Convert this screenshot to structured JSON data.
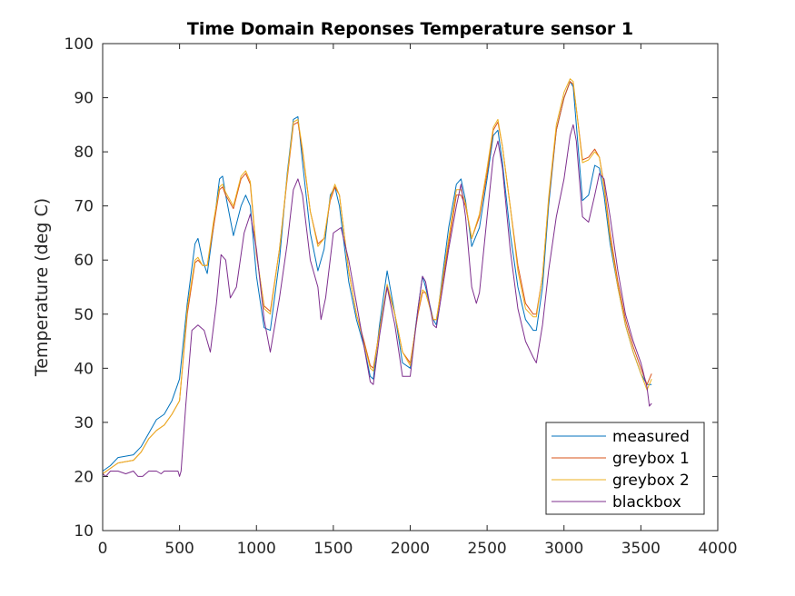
{
  "chart_data": {
    "type": "line",
    "title": "Time Domain Reponses Temperature sensor 1",
    "xlabel": "",
    "ylabel": "Temperature (deg C)",
    "xlim": [
      0,
      4000
    ],
    "ylim": [
      10,
      100
    ],
    "xticks": [
      "0",
      "500",
      "1000",
      "1500",
      "2000",
      "2500",
      "3000",
      "3500",
      "4000"
    ],
    "yticks": [
      "10",
      "20",
      "30",
      "40",
      "50",
      "60",
      "70",
      "80",
      "90",
      "100"
    ],
    "grid": false,
    "legend_position": "bottom-right",
    "series": [
      {
        "name": "measured",
        "color": "#0072BD",
        "x": [
          0,
          50,
          100,
          200,
          250,
          300,
          350,
          400,
          450,
          500,
          550,
          600,
          620,
          650,
          680,
          720,
          760,
          780,
          800,
          850,
          900,
          930,
          960,
          1000,
          1050,
          1090,
          1150,
          1200,
          1240,
          1270,
          1300,
          1350,
          1400,
          1440,
          1480,
          1510,
          1540,
          1600,
          1650,
          1700,
          1740,
          1760,
          1800,
          1850,
          1900,
          1950,
          2000,
          2050,
          2080,
          2100,
          2150,
          2170,
          2200,
          2250,
          2300,
          2330,
          2360,
          2400,
          2450,
          2500,
          2540,
          2570,
          2600,
          2650,
          2700,
          2750,
          2800,
          2820,
          2860,
          2900,
          2950,
          3000,
          3040,
          3060,
          3080,
          3120,
          3160,
          3200,
          3230,
          3260,
          3300,
          3350,
          3400,
          3450,
          3500,
          3540,
          3570
        ],
        "y": [
          21,
          22,
          23.5,
          24,
          25.5,
          28,
          30.5,
          31.5,
          34,
          38,
          52,
          63,
          64,
          60,
          57.5,
          66,
          75,
          75.5,
          72,
          64.5,
          70,
          72,
          70,
          57,
          47.5,
          47,
          60,
          76,
          86,
          86.5,
          78,
          65,
          58,
          62,
          72,
          73.5,
          70,
          56,
          49,
          44,
          38.5,
          38,
          48,
          58,
          50,
          41,
          40,
          51,
          57,
          55,
          49,
          48,
          55,
          66,
          74,
          75,
          71,
          62.5,
          66,
          75,
          83,
          84,
          78,
          65,
          55,
          49,
          47,
          47,
          55,
          70,
          84,
          90,
          93,
          92,
          85,
          71,
          72,
          77.5,
          77,
          72,
          63,
          55,
          48,
          43,
          39,
          37,
          37
        ]
      },
      {
        "name": "greybox 1",
        "color": "#D95319",
        "x": [
          0,
          50,
          100,
          200,
          250,
          300,
          350,
          400,
          450,
          500,
          550,
          600,
          620,
          650,
          680,
          720,
          760,
          780,
          800,
          850,
          900,
          930,
          960,
          1000,
          1050,
          1090,
          1150,
          1200,
          1240,
          1270,
          1300,
          1350,
          1400,
          1440,
          1480,
          1510,
          1540,
          1600,
          1650,
          1700,
          1740,
          1760,
          1800,
          1850,
          1900,
          1950,
          2000,
          2050,
          2080,
          2100,
          2150,
          2170,
          2200,
          2250,
          2300,
          2330,
          2360,
          2400,
          2450,
          2500,
          2540,
          2570,
          2600,
          2650,
          2700,
          2750,
          2800,
          2820,
          2860,
          2900,
          2950,
          3000,
          3040,
          3060,
          3080,
          3120,
          3160,
          3200,
          3230,
          3260,
          3300,
          3350,
          3400,
          3450,
          3500,
          3540,
          3570
        ],
        "y": [
          20.5,
          21.5,
          22.5,
          23,
          24.5,
          27,
          28.5,
          29.5,
          31.5,
          34,
          50,
          59.5,
          60,
          59,
          59,
          66,
          73,
          73.5,
          72,
          69.5,
          75,
          76,
          74,
          61,
          51.5,
          50.5,
          62,
          75,
          85,
          85.5,
          80,
          69,
          63,
          64,
          71,
          73.5,
          72,
          58,
          50,
          45,
          40.5,
          40,
          47,
          55,
          50,
          43,
          41,
          50,
          54,
          54,
          49,
          49,
          54,
          63,
          72,
          72,
          70,
          64,
          68,
          76,
          84,
          85.5,
          81,
          70,
          59,
          52,
          50,
          50,
          57,
          71,
          84,
          90,
          93,
          92.5,
          88,
          78.5,
          79,
          80.5,
          79,
          74,
          65,
          56,
          49,
          44,
          40,
          37,
          39
        ]
      },
      {
        "name": "greybox 2",
        "color": "#EDB120",
        "x": [
          0,
          50,
          100,
          200,
          250,
          300,
          350,
          400,
          450,
          500,
          550,
          600,
          620,
          650,
          680,
          720,
          760,
          780,
          800,
          850,
          900,
          930,
          960,
          1000,
          1050,
          1090,
          1150,
          1200,
          1240,
          1270,
          1300,
          1350,
          1400,
          1440,
          1480,
          1510,
          1540,
          1600,
          1650,
          1700,
          1740,
          1760,
          1800,
          1850,
          1900,
          1950,
          2000,
          2050,
          2080,
          2100,
          2150,
          2170,
          2200,
          2250,
          2300,
          2330,
          2360,
          2400,
          2450,
          2500,
          2540,
          2570,
          2600,
          2650,
          2700,
          2750,
          2800,
          2820,
          2860,
          2900,
          2950,
          3000,
          3040,
          3060,
          3080,
          3120,
          3160,
          3200,
          3230,
          3260,
          3300,
          3350,
          3400,
          3450,
          3500,
          3540,
          3570
        ],
        "y": [
          20.5,
          21.5,
          22.5,
          23,
          24.5,
          27,
          28.5,
          29.5,
          31.5,
          34,
          51,
          60,
          60.5,
          59,
          59,
          67,
          73.5,
          74,
          72.5,
          70,
          75.5,
          76.5,
          74.5,
          61.5,
          51,
          50,
          62,
          75.5,
          85.5,
          86,
          80.5,
          69,
          62.5,
          64,
          71.5,
          74,
          72,
          58,
          50,
          44.5,
          40,
          39.5,
          47,
          55.5,
          50,
          43,
          40.5,
          50.5,
          54.5,
          54,
          49,
          49,
          54.5,
          64,
          73,
          73,
          70.5,
          64,
          68.5,
          77,
          84.5,
          86,
          81,
          70,
          58,
          51,
          49.5,
          49.5,
          57,
          71.5,
          85,
          91,
          93.5,
          93,
          88,
          78,
          78.5,
          80,
          79,
          73.5,
          64,
          55,
          48,
          43,
          39,
          36,
          38
        ]
      },
      {
        "name": "blackbox",
        "color": "#7E2F8E",
        "x": [
          0,
          20,
          50,
          100,
          150,
          200,
          230,
          260,
          300,
          320,
          350,
          380,
          400,
          450,
          490,
          500,
          510,
          540,
          580,
          620,
          660,
          700,
          740,
          770,
          800,
          830,
          870,
          920,
          960,
          1000,
          1050,
          1090,
          1150,
          1200,
          1240,
          1270,
          1300,
          1350,
          1400,
          1420,
          1450,
          1500,
          1550,
          1600,
          1650,
          1700,
          1740,
          1760,
          1800,
          1850,
          1900,
          1950,
          2000,
          2050,
          2080,
          2100,
          2150,
          2170,
          2200,
          2250,
          2300,
          2330,
          2360,
          2400,
          2430,
          2450,
          2500,
          2540,
          2570,
          2600,
          2650,
          2700,
          2750,
          2800,
          2820,
          2860,
          2900,
          2950,
          3000,
          3040,
          3060,
          3080,
          3120,
          3160,
          3200,
          3230,
          3260,
          3300,
          3350,
          3400,
          3450,
          3500,
          3540,
          3555,
          3570
        ],
        "y": [
          20.5,
          20,
          21,
          21,
          20.5,
          21,
          20,
          20,
          21,
          21,
          21,
          20.5,
          21,
          21,
          21,
          20,
          21,
          33,
          47,
          48,
          47,
          43,
          52,
          61,
          60,
          53,
          55,
          65,
          68.5,
          62,
          49,
          43,
          53,
          63,
          73,
          75,
          72,
          60,
          55,
          49,
          53,
          65,
          66,
          60,
          52,
          44,
          37.5,
          37,
          46,
          55,
          48,
          38.5,
          38.5,
          51,
          57,
          56,
          48,
          47.5,
          53,
          62,
          70,
          74,
          68,
          55,
          52,
          54,
          68,
          79,
          82,
          77,
          62,
          51,
          45,
          42,
          41,
          48,
          58,
          68,
          75,
          83,
          85,
          82,
          68,
          67,
          72,
          76,
          75,
          68,
          58,
          50,
          45,
          41,
          36.5,
          33,
          33.5
        ]
      }
    ]
  }
}
